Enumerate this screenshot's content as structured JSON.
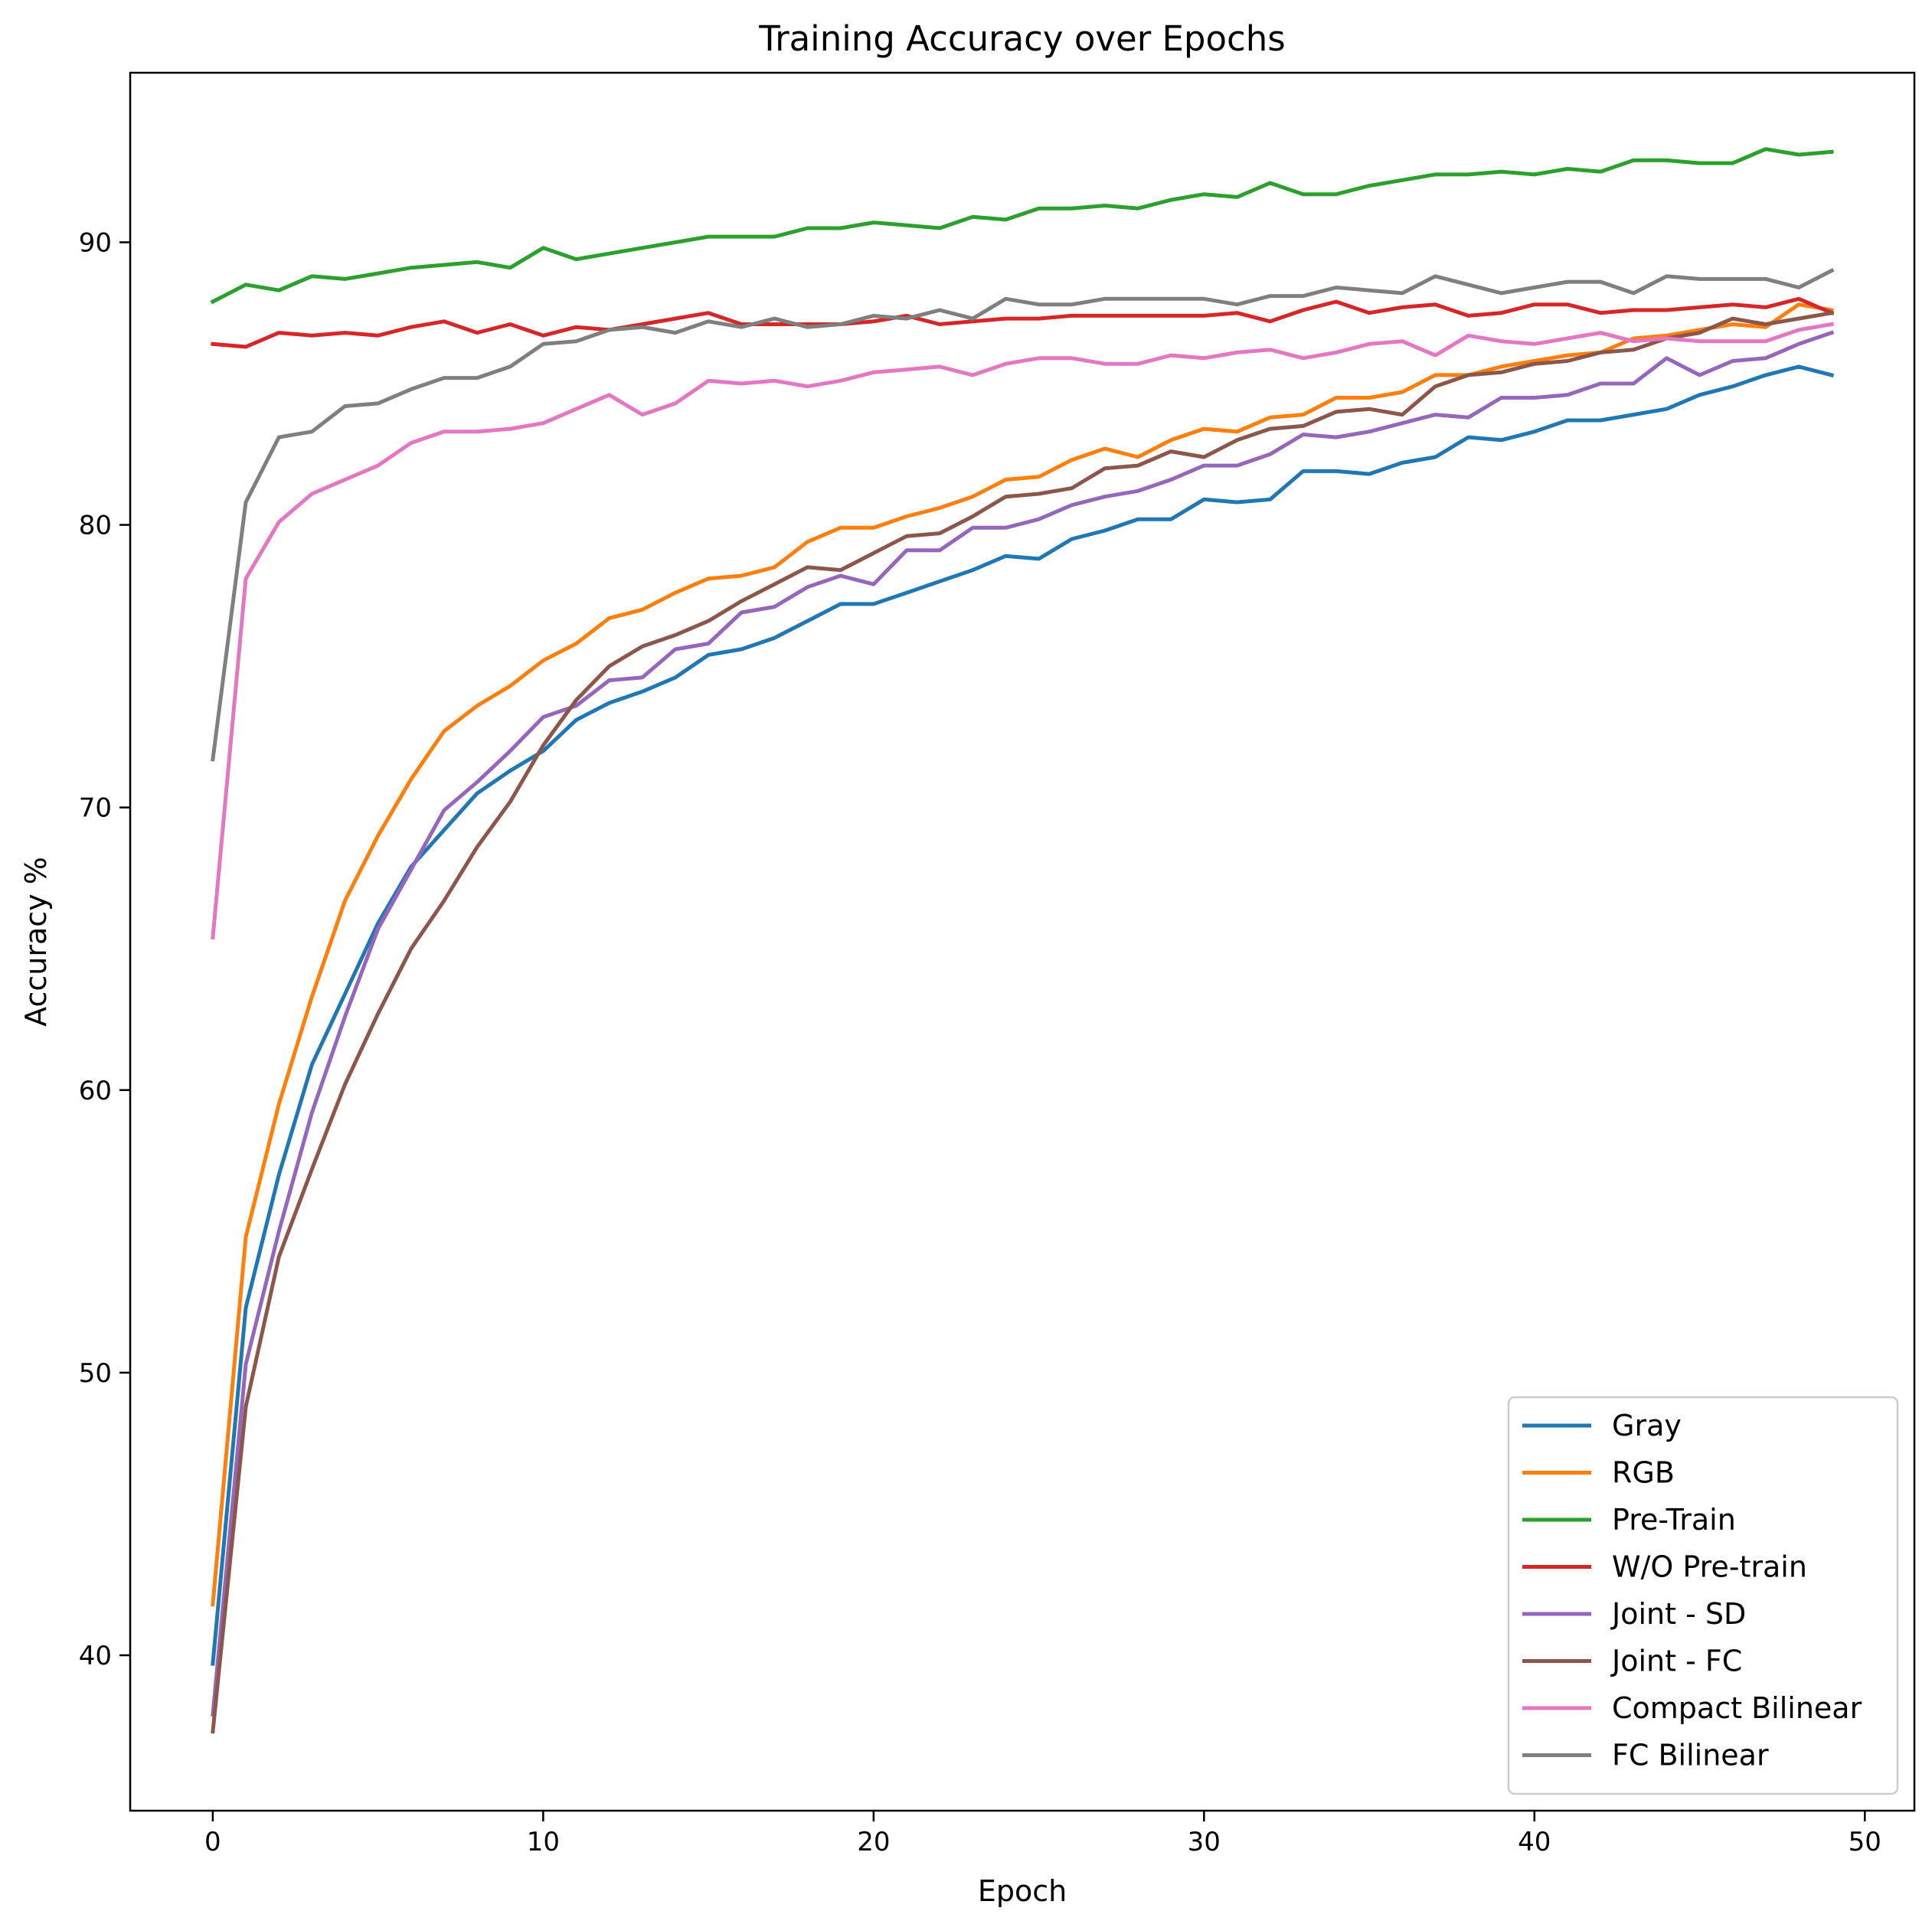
{
  "chart_data": {
    "type": "line",
    "title": "Training Accuracy over Epochs",
    "xlabel": "Epoch",
    "ylabel": "Accuracy %",
    "xlim": [
      -2.5,
      51.5
    ],
    "ylim": [
      34.5,
      96.0
    ],
    "xticks": [
      0,
      10,
      20,
      30,
      40,
      50
    ],
    "yticks": [
      40,
      50,
      60,
      70,
      80,
      90
    ],
    "grid": false,
    "legend_position": "lower-right",
    "x": [
      0,
      1,
      2,
      3,
      4,
      5,
      6,
      7,
      8,
      9,
      10,
      11,
      12,
      13,
      14,
      15,
      16,
      17,
      18,
      19,
      20,
      21,
      22,
      23,
      24,
      25,
      26,
      27,
      28,
      29,
      30,
      31,
      32,
      33,
      34,
      35,
      36,
      37,
      38,
      39,
      40,
      41,
      42,
      43,
      44,
      45,
      46,
      47,
      48,
      49
    ],
    "series": [
      {
        "name": "Gray",
        "color": "#1f77b4",
        "values": [
          39.7,
          52.3,
          57.0,
          60.9,
          63.4,
          65.9,
          67.9,
          69.2,
          70.5,
          71.3,
          72.0,
          73.1,
          73.7,
          74.1,
          74.6,
          75.4,
          75.6,
          76.0,
          76.6,
          77.2,
          77.2,
          77.6,
          78.0,
          78.4,
          78.9,
          78.8,
          79.5,
          79.8,
          80.2,
          80.2,
          80.9,
          80.8,
          80.9,
          81.9,
          81.9,
          81.8,
          82.2,
          82.4,
          83.1,
          83.0,
          83.3,
          83.7,
          83.7,
          83.9,
          84.1,
          84.6,
          84.9,
          85.3,
          85.6,
          85.3
        ]
      },
      {
        "name": "RGB",
        "color": "#ff7f0e",
        "values": [
          41.8,
          54.8,
          59.5,
          63.3,
          66.7,
          69.0,
          71.0,
          72.7,
          73.6,
          74.3,
          75.2,
          75.8,
          76.7,
          77.0,
          77.6,
          78.1,
          78.2,
          78.5,
          79.4,
          79.9,
          79.9,
          80.3,
          80.6,
          81.0,
          81.6,
          81.7,
          82.3,
          82.7,
          82.4,
          83.0,
          83.4,
          83.3,
          83.8,
          83.9,
          84.5,
          84.5,
          84.7,
          85.3,
          85.3,
          85.6,
          85.8,
          86.0,
          86.1,
          86.6,
          86.7,
          86.9,
          87.1,
          87.0,
          87.8,
          87.6
        ]
      },
      {
        "name": "Pre-Train",
        "color": "#2ca02c",
        "values": [
          87.9,
          88.5,
          88.3,
          88.8,
          88.7,
          88.9,
          89.1,
          89.2,
          89.3,
          89.1,
          89.8,
          89.4,
          89.6,
          89.8,
          90.0,
          90.2,
          90.2,
          90.2,
          90.5,
          90.5,
          90.7,
          90.6,
          90.5,
          90.9,
          90.8,
          91.2,
          91.2,
          91.3,
          91.2,
          91.5,
          91.7,
          91.6,
          92.1,
          91.7,
          91.7,
          92.0,
          92.2,
          92.4,
          92.4,
          92.5,
          92.4,
          92.6,
          92.5,
          92.9,
          92.9,
          92.8,
          92.8,
          93.3,
          93.1,
          93.2
        ]
      },
      {
        "name": "W/O Pre-train",
        "color": "#d62728",
        "values": [
          86.4,
          86.3,
          86.8,
          86.7,
          86.8,
          86.7,
          87.0,
          87.2,
          86.8,
          87.1,
          86.7,
          87.0,
          86.9,
          87.1,
          87.3,
          87.5,
          87.1,
          87.1,
          87.1,
          87.1,
          87.2,
          87.4,
          87.1,
          87.2,
          87.3,
          87.3,
          87.4,
          87.4,
          87.4,
          87.4,
          87.4,
          87.5,
          87.2,
          87.6,
          87.9,
          87.5,
          87.7,
          87.8,
          87.4,
          87.5,
          87.8,
          87.8,
          87.5,
          87.6,
          87.6,
          87.7,
          87.8,
          87.7,
          88.0,
          87.5
        ]
      },
      {
        "name": "Joint - SD",
        "color": "#9467bd",
        "values": [
          37.9,
          50.3,
          55.0,
          59.2,
          62.6,
          65.7,
          67.8,
          69.9,
          70.9,
          72.0,
          73.2,
          73.6,
          74.5,
          74.6,
          75.6,
          75.8,
          76.9,
          77.1,
          77.8,
          78.2,
          77.9,
          79.1,
          79.1,
          79.9,
          79.9,
          80.2,
          80.7,
          81.0,
          81.2,
          81.6,
          82.1,
          82.1,
          82.5,
          83.2,
          83.1,
          83.3,
          83.6,
          83.9,
          83.8,
          84.5,
          84.5,
          84.6,
          85.0,
          85.0,
          85.9,
          85.3,
          85.8,
          85.9,
          86.4,
          86.8
        ]
      },
      {
        "name": "Joint - FC",
        "color": "#8c564b",
        "values": [
          37.3,
          48.8,
          54.1,
          57.2,
          60.2,
          62.7,
          65.0,
          66.7,
          68.6,
          70.2,
          72.2,
          73.8,
          75.0,
          75.7,
          76.1,
          76.6,
          77.3,
          77.9,
          78.5,
          78.4,
          79.0,
          79.6,
          79.7,
          80.3,
          81.0,
          81.1,
          81.3,
          82.0,
          82.1,
          82.6,
          82.4,
          83.0,
          83.4,
          83.5,
          84.0,
          84.1,
          83.9,
          84.9,
          85.3,
          85.4,
          85.7,
          85.8,
          86.1,
          86.2,
          86.6,
          86.8,
          87.3,
          87.1,
          87.3,
          87.5
        ]
      },
      {
        "name": "Compact Bilinear",
        "color": "#e377c2",
        "values": [
          65.4,
          78.1,
          80.1,
          81.1,
          81.6,
          82.1,
          82.9,
          83.3,
          83.3,
          83.4,
          83.6,
          84.1,
          84.6,
          83.9,
          84.3,
          85.1,
          85.0,
          85.1,
          84.9,
          85.1,
          85.4,
          85.5,
          85.6,
          85.3,
          85.7,
          85.9,
          85.9,
          85.7,
          85.7,
          86.0,
          85.9,
          86.1,
          86.2,
          85.9,
          86.1,
          86.4,
          86.5,
          86.0,
          86.7,
          86.5,
          86.4,
          86.6,
          86.8,
          86.5,
          86.6,
          86.5,
          86.5,
          86.5,
          86.9,
          87.1
        ]
      },
      {
        "name": "FC Bilinear",
        "color": "#7f7f7f",
        "values": [
          71.7,
          80.8,
          83.1,
          83.3,
          84.2,
          84.3,
          84.8,
          85.2,
          85.2,
          85.6,
          86.4,
          86.5,
          86.9,
          87.0,
          86.8,
          87.2,
          87.0,
          87.3,
          87.0,
          87.1,
          87.4,
          87.3,
          87.6,
          87.3,
          88.0,
          87.8,
          87.8,
          88.0,
          88.0,
          88.0,
          88.0,
          87.8,
          88.1,
          88.1,
          88.4,
          88.3,
          88.2,
          88.8,
          88.5,
          88.2,
          88.4,
          88.6,
          88.6,
          88.2,
          88.8,
          88.7,
          88.7,
          88.7,
          88.4,
          89.0
        ]
      }
    ]
  }
}
